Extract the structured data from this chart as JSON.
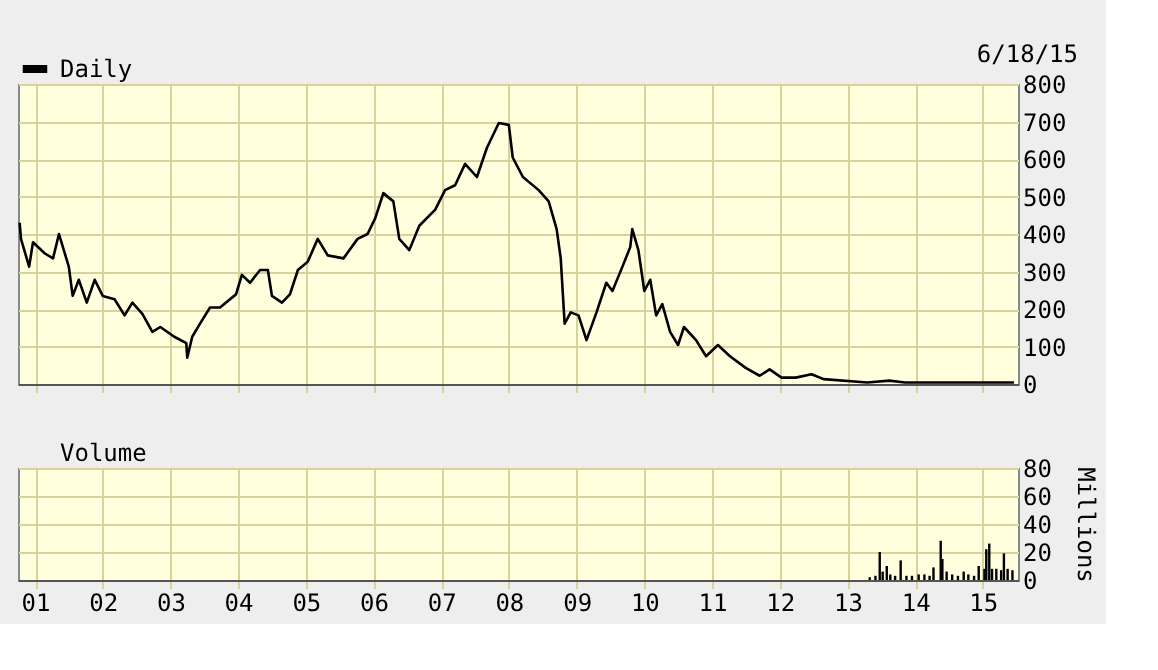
{
  "chart_data": [
    {
      "type": "line",
      "annotations": [
        "6/18/15"
      ],
      "legend": "top left",
      "grid": true,
      "tick_labels": "y",
      "x": [
        "2000-10-10",
        "2000-10-17",
        "2000-11-30",
        "2000-12-21",
        "2001-02-23",
        "2001-04-08",
        "2001-05-10",
        "2001-07-02",
        "2001-07-23",
        "2001-08-25",
        "2001-10-07",
        "2001-11-19",
        "2002-01-01",
        "2002-03-06",
        "2002-04-29",
        "2002-06-10",
        "2002-08-03",
        "2002-09-26",
        "2002-11-08",
        "2003-01-22",
        "2003-03-28",
        "2003-04-02",
        "2003-04-29",
        "2003-06-10",
        "2003-08-03",
        "2003-09-26",
        "2003-12-21",
        "2004-01-22",
        "2004-03-06",
        "2004-04-29",
        "2004-06-10",
        "2004-07-02",
        "2004-08-25",
        "2004-10-07",
        "2004-11-19",
        "2005-01-11",
        "2005-03-06",
        "2005-04-29",
        "2005-07-23",
        "2005-10-07",
        "2005-11-30",
        "2006-01-11",
        "2006-02-23",
        "2006-04-18",
        "2006-05-20",
        "2006-07-13",
        "2006-09-05",
        "2006-11-30",
        "2007-01-22",
        "2007-03-17",
        "2007-05-10",
        "2007-07-13",
        "2007-09-05",
        "2007-11-08",
        "2008-01-01",
        "2008-01-22",
        "2008-03-17",
        "2008-06-10",
        "2008-08-03",
        "2008-09-15",
        "2008-10-07",
        "2008-10-28",
        "2008-11-30",
        "2009-01-11",
        "2009-02-23",
        "2009-04-18",
        "2009-06-10",
        "2009-07-13",
        "2009-09-05",
        "2009-10-17",
        "2009-10-28",
        "2009-11-30",
        "2010-01-01",
        "2010-02-02",
        "2010-03-06",
        "2010-04-08",
        "2010-05-20",
        "2010-07-02",
        "2010-08-03",
        "2010-10-07",
        "2010-11-30",
        "2011-02-02",
        "2011-04-08",
        "2011-07-02",
        "2011-09-15",
        "2011-11-08",
        "2012-01-11",
        "2012-03-28",
        "2012-06-21",
        "2012-08-25",
        "2013-04-18",
        "2013-08-14",
        "2013-11-08",
        "2015-06-18"
      ],
      "series": [
        {
          "name": "Daily",
          "color": "#000000",
          "values": [
            430,
            387,
            313,
            378,
            348,
            335,
            400,
            313,
            235,
            278,
            217,
            278,
            235,
            226,
            183,
            217,
            187,
            139,
            152,
            126,
            109,
            70,
            126,
            161,
            204,
            204,
            239,
            291,
            270,
            304,
            304,
            235,
            217,
            239,
            304,
            326,
            387,
            343,
            335,
            387,
            400,
            443,
            509,
            487,
            387,
            357,
            422,
            465,
            517,
            530,
            587,
            552,
            630,
            696,
            691,
            604,
            552,
            517,
            487,
            413,
            335,
            161,
            191,
            183,
            117,
            191,
            270,
            248,
            313,
            365,
            413,
            357,
            248,
            278,
            183,
            213,
            139,
            104,
            152,
            117,
            74,
            104,
            74,
            43,
            22,
            39,
            17,
            17,
            26,
            13,
            4,
            9,
            4,
            4
          ]
        }
      ],
      "xlim": [
        "2000-10-01",
        "2015-07-10"
      ],
      "xticks": [
        {
          "value": "2001-01-01",
          "label": null
        },
        {
          "value": "2002-01-01",
          "label": null
        },
        {
          "value": "2003-01-01",
          "label": null
        },
        {
          "value": "2004-01-01",
          "label": null
        },
        {
          "value": "2005-01-01",
          "label": null
        },
        {
          "value": "2006-01-01",
          "label": null
        },
        {
          "value": "2007-01-01",
          "label": null
        },
        {
          "value": "2008-01-01",
          "label": null
        },
        {
          "value": "2009-01-01",
          "label": null
        },
        {
          "value": "2010-01-01",
          "label": null
        },
        {
          "value": "2011-01-01",
          "label": null
        },
        {
          "value": "2012-01-01",
          "label": null
        },
        {
          "value": "2013-01-01",
          "label": null
        },
        {
          "value": "2014-01-01",
          "label": null
        },
        {
          "value": "2015-01-01",
          "label": null
        }
      ],
      "ylim": [
        0,
        800
      ],
      "yticks": [
        0,
        100,
        200,
        300,
        400,
        500,
        600,
        700,
        800
      ]
    },
    {
      "type": "bar",
      "legend": "top left",
      "grid": true,
      "ylabel": "Millions",
      "x": [
        "2013-05-01",
        "2013-06-01",
        "2013-06-24",
        "2013-07-10",
        "2013-08-01",
        "2013-08-20",
        "2013-09-15",
        "2013-10-15",
        "2013-11-15",
        "2013-12-15",
        "2014-01-20",
        "2014-02-20",
        "2014-03-20",
        "2014-04-10",
        "2014-05-19",
        "2014-05-28",
        "2014-06-20",
        "2014-07-20",
        "2014-08-20",
        "2014-09-20",
        "2014-10-15",
        "2014-11-15",
        "2014-12-10",
        "2015-01-10",
        "2015-01-20",
        "2015-02-05",
        "2015-02-20",
        "2015-03-15",
        "2015-04-10",
        "2015-04-25",
        "2015-05-15",
        "2015-06-10"
      ],
      "series": [
        {
          "name": "Volume",
          "color": "#000000",
          "values": [
            2,
            3,
            20,
            6,
            10,
            4,
            3,
            14,
            3,
            3,
            4,
            4,
            3,
            9,
            28,
            15,
            6,
            4,
            3,
            6,
            4,
            3,
            10,
            8,
            22,
            26,
            8,
            8,
            7,
            19,
            8,
            7
          ]
        }
      ],
      "xlim": [
        "2000-10-01",
        "2015-07-10"
      ],
      "xticks": [
        {
          "value": "2001-01-01",
          "label": "01"
        },
        {
          "value": "2002-01-01",
          "label": "02"
        },
        {
          "value": "2003-01-01",
          "label": "03"
        },
        {
          "value": "2004-01-01",
          "label": "04"
        },
        {
          "value": "2005-01-01",
          "label": "05"
        },
        {
          "value": "2006-01-01",
          "label": "06"
        },
        {
          "value": "2007-01-01",
          "label": "07"
        },
        {
          "value": "2008-01-01",
          "label": "08"
        },
        {
          "value": "2009-01-01",
          "label": "09"
        },
        {
          "value": "2010-01-01",
          "label": "10"
        },
        {
          "value": "2011-01-01",
          "label": "11"
        },
        {
          "value": "2012-01-01",
          "label": "12"
        },
        {
          "value": "2013-01-01",
          "label": "13"
        },
        {
          "value": "2014-01-01",
          "label": "14"
        },
        {
          "value": "2015-01-01",
          "label": "15"
        }
      ],
      "ylim": [
        0,
        80
      ],
      "yticks": [
        0,
        20,
        40,
        60,
        80
      ]
    }
  ]
}
